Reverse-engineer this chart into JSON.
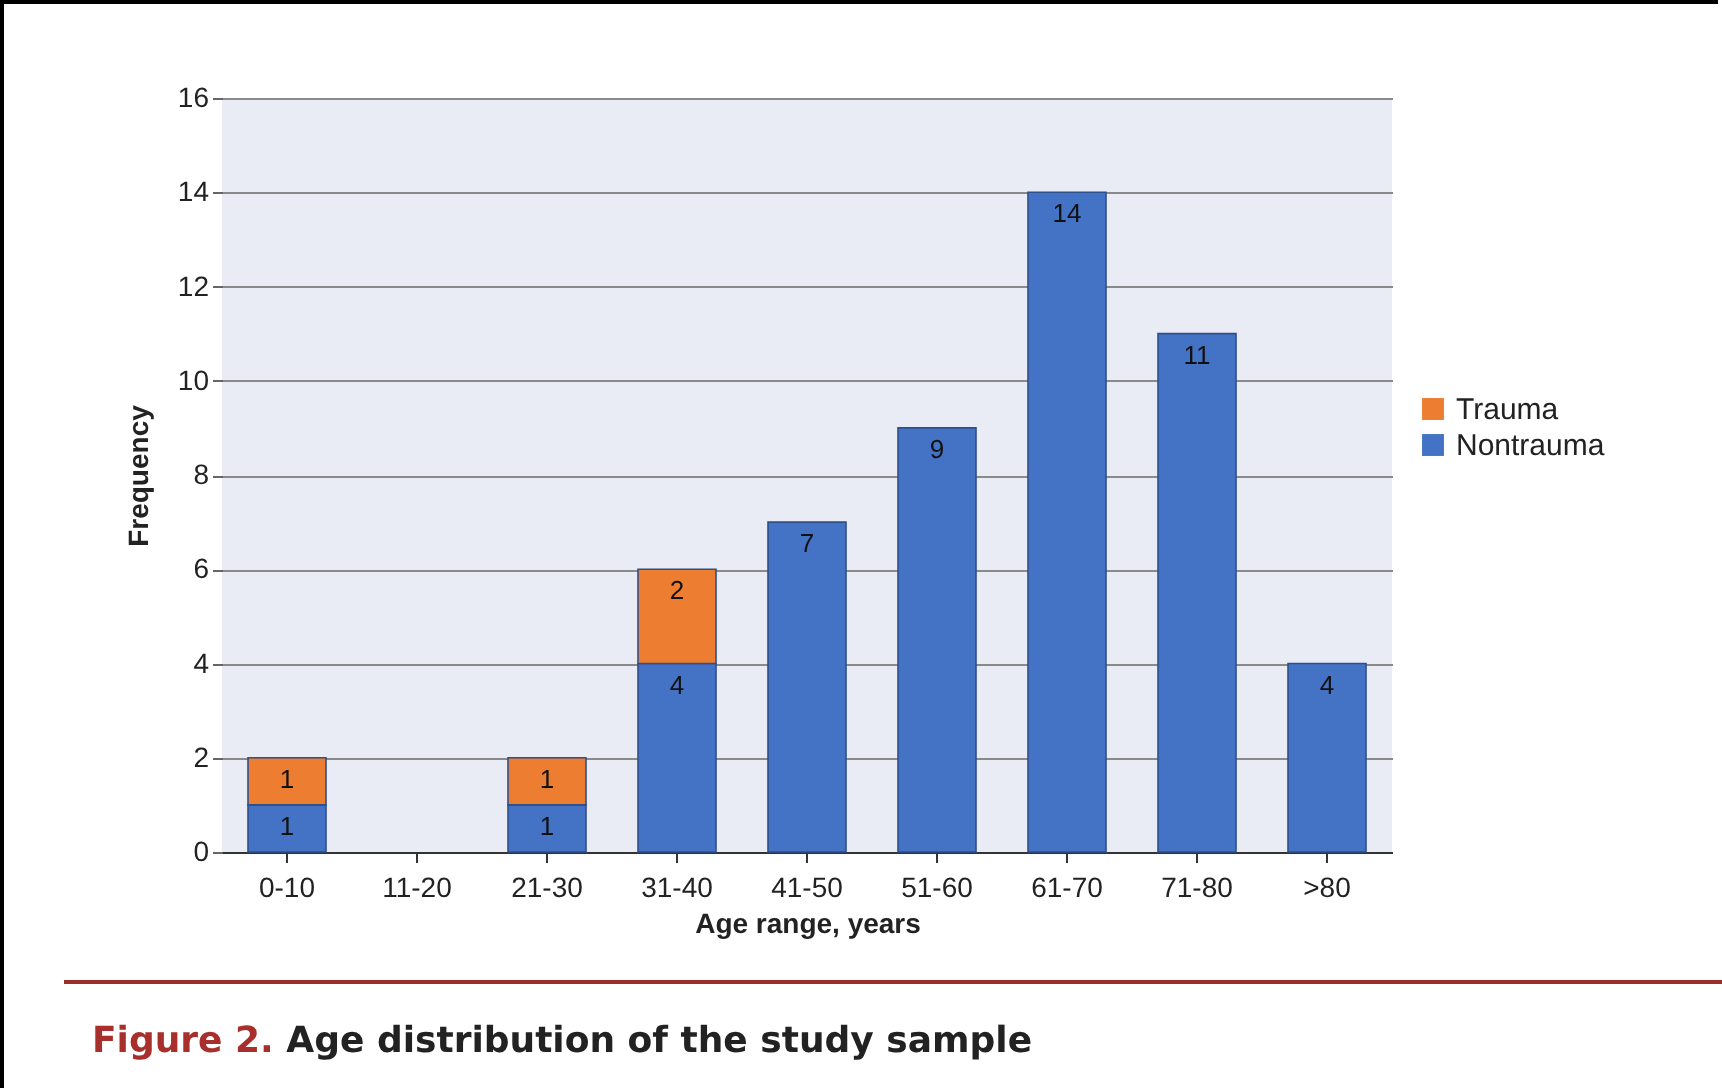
{
  "chart_data": {
    "type": "bar",
    "title": "Figure 2. Age distribution of the study sample",
    "xlabel": "Age range, years",
    "ylabel": "Frequency",
    "categories": [
      "0-10",
      "11-20",
      "21-30",
      "31-40",
      "41-50",
      "51-60",
      "61-70",
      "71-80",
      ">80"
    ],
    "series": [
      {
        "name": "Nontrauma",
        "color": "#4472c4",
        "values": [
          1,
          null,
          1,
          4,
          7,
          9,
          14,
          11,
          4
        ]
      },
      {
        "name": "Trauma",
        "color": "#ed7d31",
        "values": [
          1,
          null,
          1,
          2,
          null,
          null,
          null,
          null,
          null
        ]
      }
    ],
    "stacked": true,
    "ylim": [
      0,
      16
    ],
    "yticks": [
      0,
      2,
      4,
      6,
      8,
      10,
      12,
      14,
      16
    ],
    "grid": "y",
    "legend": "right",
    "data_labels": true
  }
}
